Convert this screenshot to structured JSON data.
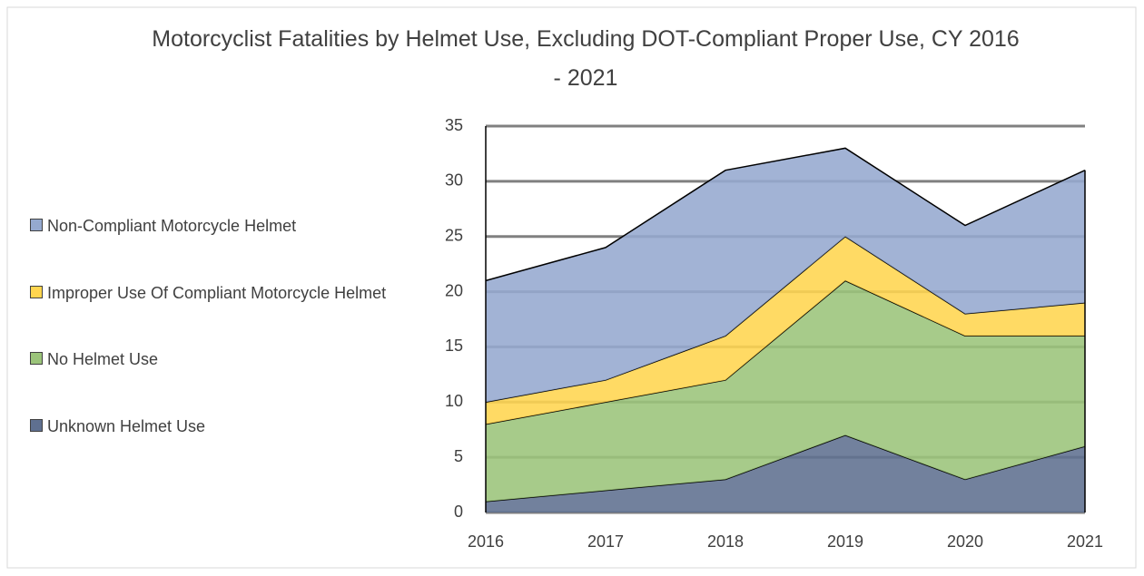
{
  "chart_data": {
    "type": "stacked_area",
    "title": "Motorcyclist Fatalities by Helmet Use, Excluding DOT-Compliant Proper Use, CY 2016 - 2021",
    "x": [
      2016,
      2017,
      2018,
      2019,
      2020,
      2021
    ],
    "xlim": [
      2016,
      2021
    ],
    "xticks": [
      2016,
      2017,
      2018,
      2019,
      2020,
      2021
    ],
    "ylim": [
      0,
      35
    ],
    "yticks": [
      0,
      5,
      10,
      15,
      20,
      25,
      30,
      35
    ],
    "grid": true,
    "legend": "left",
    "series": [
      {
        "name": "Unknown Helmet Use",
        "color": "#5f7090",
        "values": [
          1,
          2,
          3,
          7,
          3,
          6
        ]
      },
      {
        "name": "No Helmet Use",
        "color": "#9bc47a",
        "values": [
          7,
          8,
          9,
          14,
          13,
          10
        ]
      },
      {
        "name": "Improper Use Of Compliant Motorcycle Helmet",
        "color": "#ffd54f",
        "values": [
          2,
          2,
          4,
          4,
          2,
          3
        ]
      },
      {
        "name": "Non-Compliant Motorcycle Helmet",
        "color": "#95a9cf",
        "values": [
          11,
          12,
          15,
          8,
          8,
          12
        ]
      }
    ]
  }
}
